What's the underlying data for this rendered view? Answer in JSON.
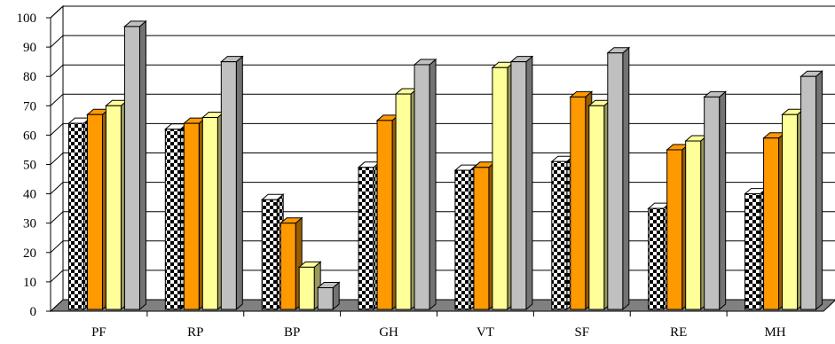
{
  "chart_data": {
    "type": "bar",
    "categories": [
      "PF",
      "RP",
      "BP",
      "GH",
      "VT",
      "SF",
      "RE",
      "MH"
    ],
    "series": [
      {
        "values": [
          64,
          62,
          38,
          49,
          48,
          51,
          35,
          40
        ],
        "pattern": "checker"
      },
      {
        "values": [
          67,
          64,
          30,
          65,
          49,
          73,
          55,
          59
        ],
        "color": "#ff9900"
      },
      {
        "values": [
          70,
          66,
          15,
          74,
          83,
          70,
          58,
          67
        ],
        "color": "#ffff99"
      },
      {
        "values": [
          97,
          85,
          8,
          84,
          85,
          88,
          73,
          80
        ],
        "color": "#c0c0c0"
      }
    ],
    "ylim": [
      0,
      100
    ],
    "yticks": [
      "0",
      "10",
      "20",
      "30",
      "40",
      "50",
      "60",
      "70",
      "80",
      "90",
      "100"
    ],
    "grid": true,
    "legend": "none",
    "three_d": true
  }
}
